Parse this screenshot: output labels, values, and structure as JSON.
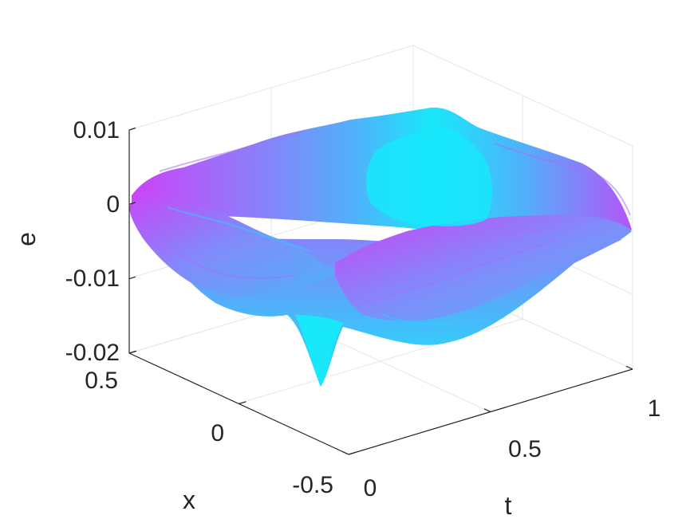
{
  "chart_data": {
    "type": "surface",
    "title": "",
    "xlabel": "t",
    "ylabel": "x",
    "zlabel": "e",
    "xlim": [
      0,
      1
    ],
    "ylim": [
      -0.5,
      0.5
    ],
    "zlim": [
      -0.02,
      0.01
    ],
    "x_ticks": [
      "0",
      "0.5",
      "1"
    ],
    "y_ticks": [
      "-0.5",
      "0",
      "0.5"
    ],
    "z_ticks": [
      "-0.02",
      "-0.01",
      "0",
      "0.01"
    ],
    "x_tick_values": [
      0,
      0.5,
      1
    ],
    "y_tick_values": [
      -0.5,
      0,
      0.5
    ],
    "z_tick_values": [
      -0.02,
      -0.01,
      0,
      0.01
    ],
    "grid": true,
    "colormap": [
      "#18e8fa",
      "#4fb2fa",
      "#8b7ffa",
      "#cd42f8"
    ],
    "surface": {
      "description_values": "error surface e(t,x); approx. zero at corners",
      "features": [
        {
          "t": 0.3,
          "x": -0.35,
          "e": -0.0175
        },
        {
          "t": 0.55,
          "x": 0.4,
          "e": 0.004
        },
        {
          "t": 1.0,
          "x": -0.5,
          "e": -0.003
        },
        {
          "t": 0.0,
          "x": 0.5,
          "e": 0.0
        }
      ]
    }
  }
}
